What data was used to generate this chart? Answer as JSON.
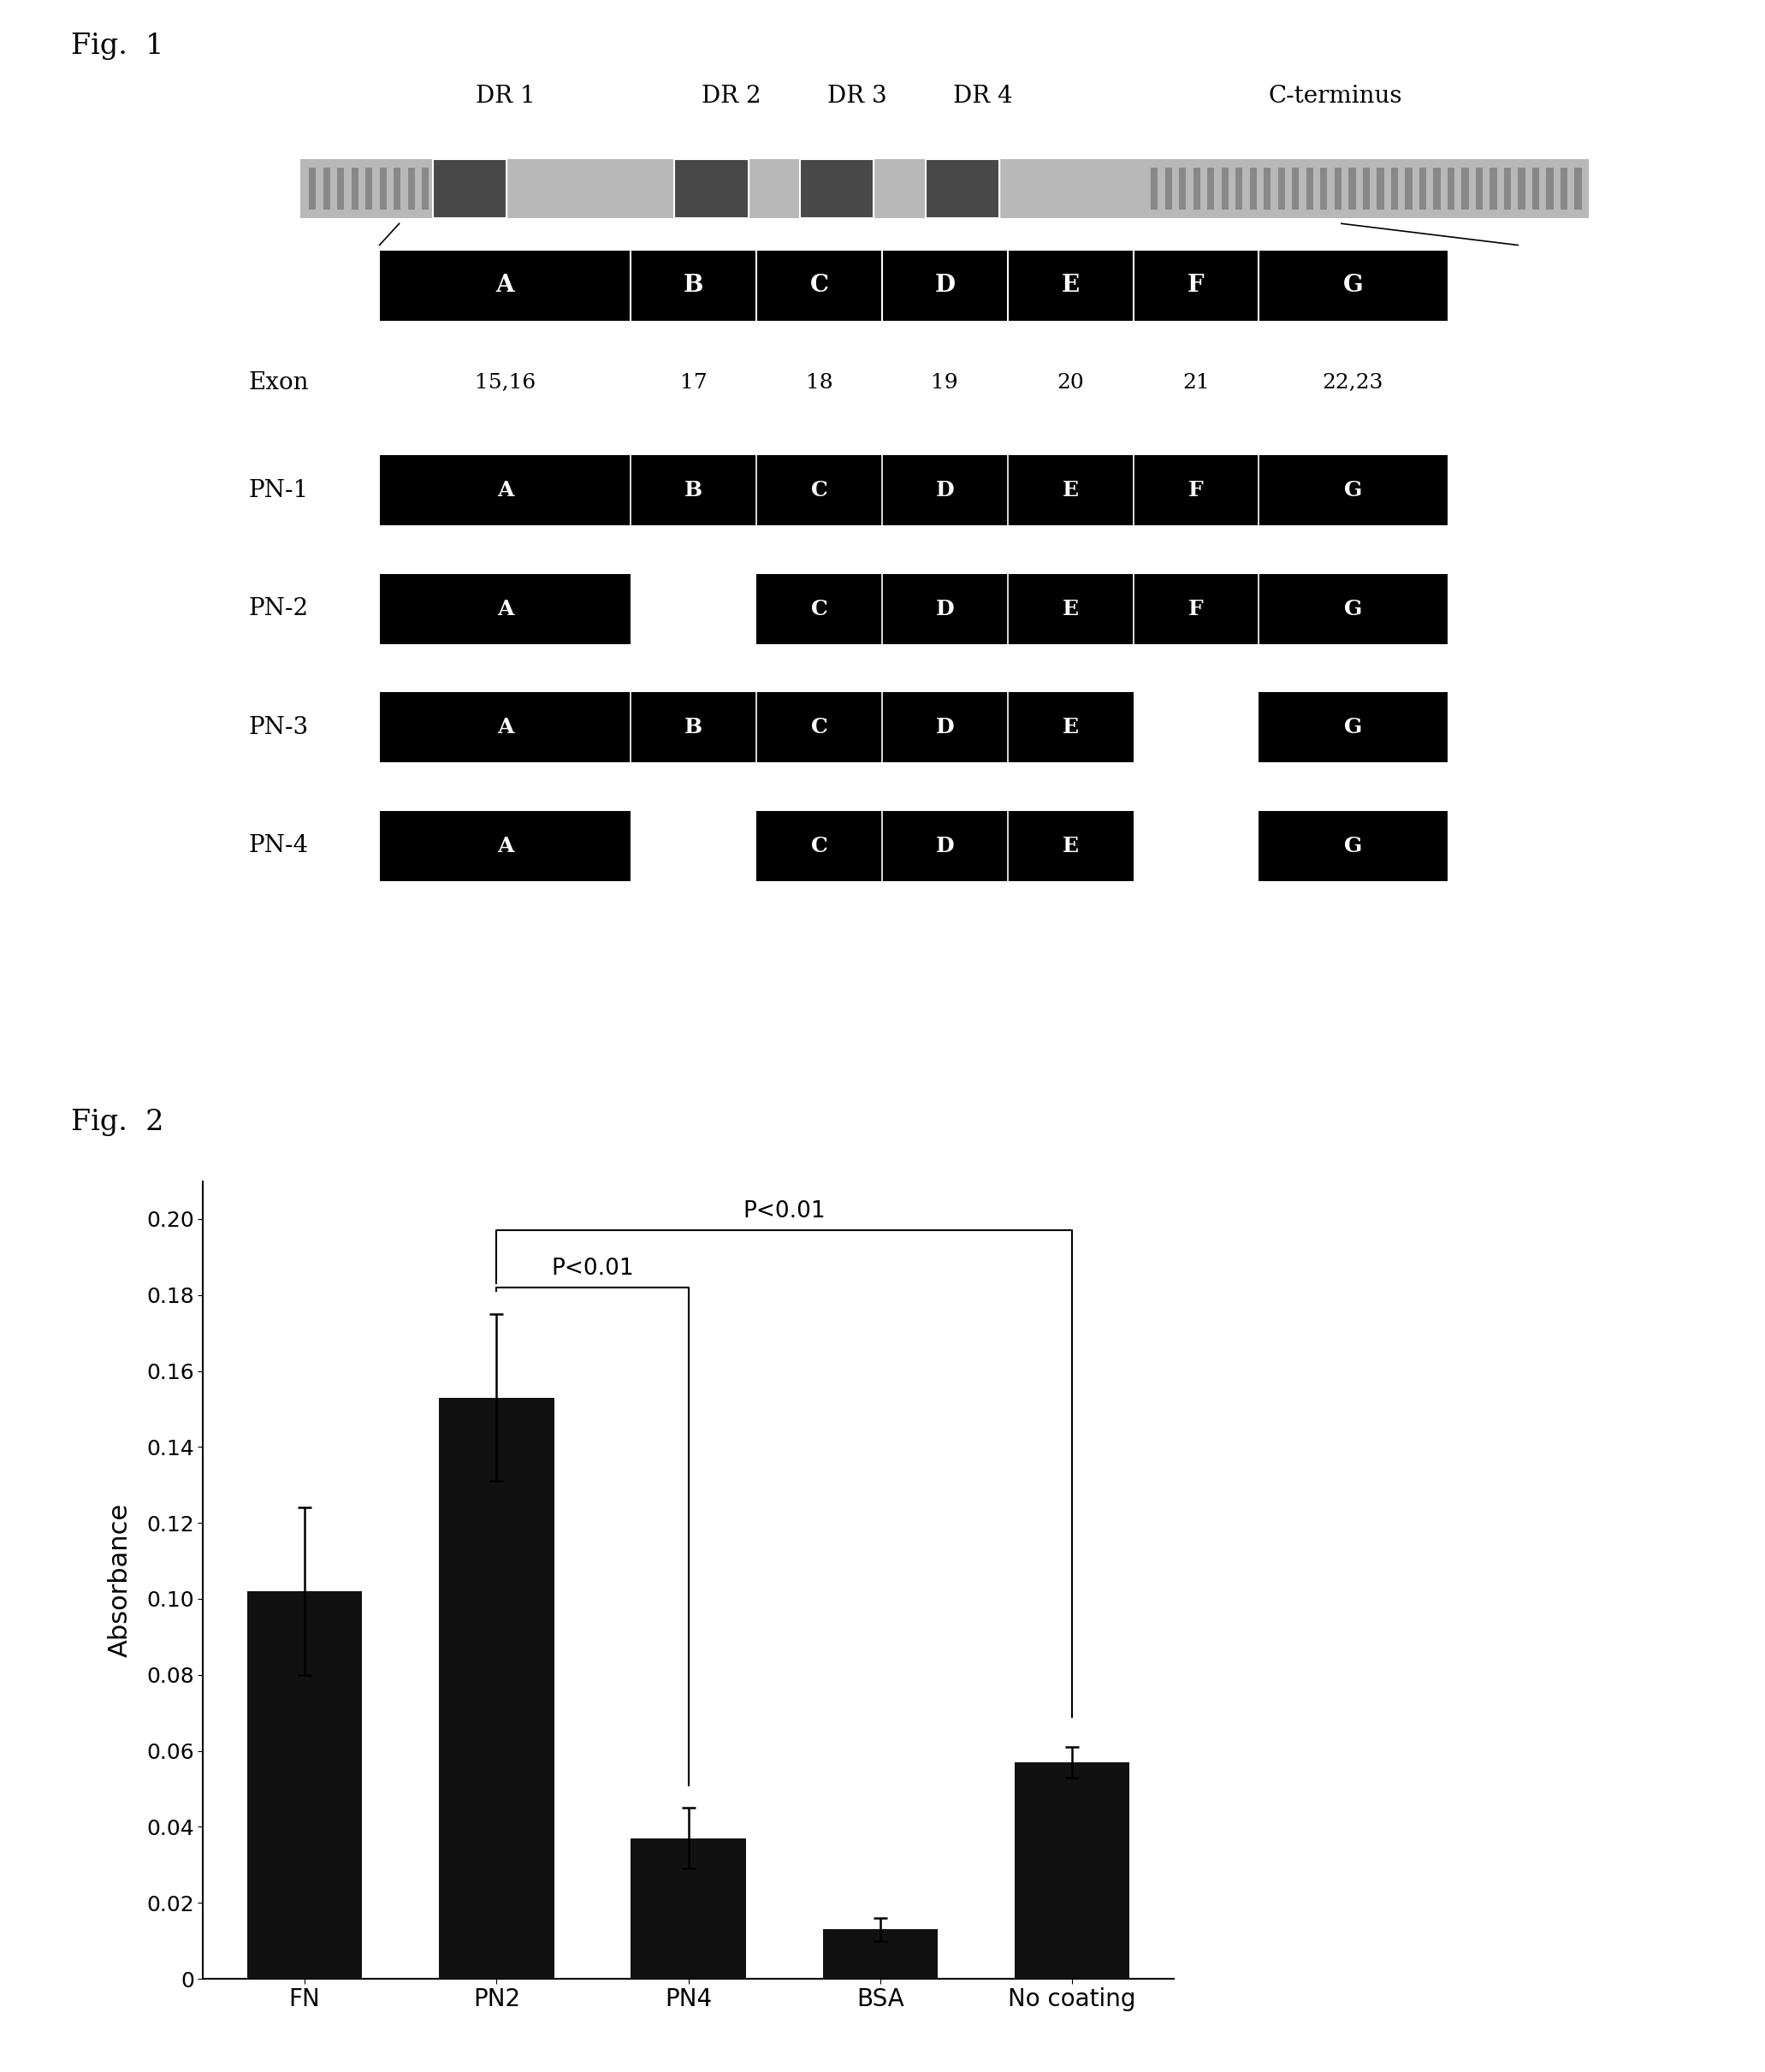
{
  "fig1_label": "Fig.  1",
  "fig2_label": "Fig.  2",
  "background_color": "#ffffff",
  "dr_labels": [
    "DR 1",
    "DR 2",
    "DR 3",
    "DR 4",
    "C-terminus"
  ],
  "segment_labels": [
    "A",
    "B",
    "C",
    "D",
    "E",
    "F",
    "G"
  ],
  "exon_label": "Exon",
  "exon_numbers": [
    "15,16",
    "17",
    "18",
    "19",
    "20",
    "21",
    "22,23"
  ],
  "pn_labels": [
    "PN-1",
    "PN-2",
    "PN-3",
    "PN-4"
  ],
  "pn_segment_sets": [
    [
      "A",
      "B",
      "C",
      "D",
      "E",
      "F",
      "G"
    ],
    [
      "A",
      "C",
      "D",
      "E",
      "F",
      "G"
    ],
    [
      "A",
      "B",
      "C",
      "D",
      "E",
      "G"
    ],
    [
      "A",
      "C",
      "D",
      "E",
      "G"
    ]
  ],
  "bar_categories": [
    "FN",
    "PN2",
    "PN4",
    "BSA",
    "No coating"
  ],
  "bar_values": [
    0.102,
    0.153,
    0.037,
    0.013,
    0.057
  ],
  "bar_errors": [
    0.022,
    0.022,
    0.008,
    0.003,
    0.004
  ],
  "bar_color": "#111111",
  "ylabel": "Absorbance",
  "ylim": [
    0,
    0.21
  ],
  "yticks": [
    0,
    0.02,
    0.04,
    0.06,
    0.08,
    0.1,
    0.12,
    0.14,
    0.16,
    0.18,
    0.2
  ],
  "ytick_labels": [
    "0",
    "0.02",
    "0.04",
    "0.06",
    "0.08",
    "0.10",
    "0.12",
    "0.14",
    "0.16",
    "0.18",
    "0.20"
  ],
  "sig1_label": "P<0.01",
  "sig2_label": "P<0.01"
}
